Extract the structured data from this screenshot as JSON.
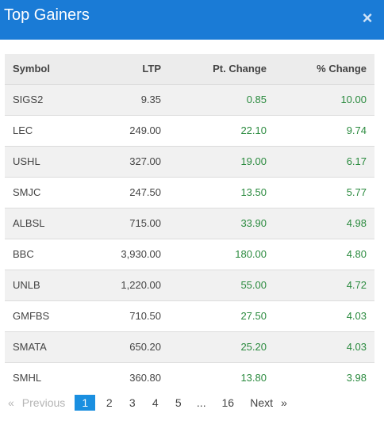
{
  "header": {
    "title": "Top Gainers",
    "close_icon": "×"
  },
  "table": {
    "columns": [
      "Symbol",
      "LTP",
      "Pt. Change",
      "% Change"
    ],
    "rows": [
      {
        "symbol": "SIGS2",
        "ltp": "9.35",
        "pt": "0.85",
        "pct": "10.00"
      },
      {
        "symbol": "LEC",
        "ltp": "249.00",
        "pt": "22.10",
        "pct": "9.74"
      },
      {
        "symbol": "USHL",
        "ltp": "327.00",
        "pt": "19.00",
        "pct": "6.17"
      },
      {
        "symbol": "SMJC",
        "ltp": "247.50",
        "pt": "13.50",
        "pct": "5.77"
      },
      {
        "symbol": "ALBSL",
        "ltp": "715.00",
        "pt": "33.90",
        "pct": "4.98"
      },
      {
        "symbol": "BBC",
        "ltp": "3,930.00",
        "pt": "180.00",
        "pct": "4.80"
      },
      {
        "symbol": "UNLB",
        "ltp": "1,220.00",
        "pt": "55.00",
        "pct": "4.72"
      },
      {
        "symbol": "GMFBS",
        "ltp": "710.50",
        "pt": "27.50",
        "pct": "4.03"
      },
      {
        "symbol": "SMATA",
        "ltp": "650.20",
        "pt": "25.20",
        "pct": "4.03"
      },
      {
        "symbol": "SMHL",
        "ltp": "360.80",
        "pt": "13.80",
        "pct": "3.98"
      }
    ]
  },
  "pagination": {
    "prev_arrow": "«",
    "prev_label": "Previous",
    "pages": [
      "1",
      "2",
      "3",
      "4",
      "5"
    ],
    "ellipsis": "...",
    "last_page": "16",
    "next_label": "Next",
    "next_arrow": "»",
    "active_page": "1"
  },
  "colors": {
    "header": "#1a7bd6",
    "positive": "#2a8a3e",
    "active_page": "#1a8fe0"
  }
}
